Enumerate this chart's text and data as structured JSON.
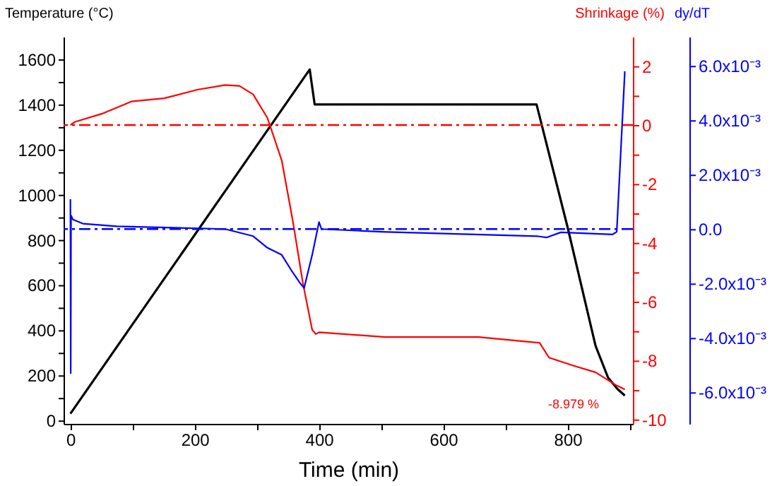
{
  "chart_data": {
    "type": "line",
    "xlabel": "Time (min)",
    "ylabel": "Temperature (°C)",
    "y2label": "Shrinkage (%)",
    "y3label": "dy/dT",
    "xlim": [
      -11,
      905
    ],
    "xticks": [
      0,
      {
        "value": 100,
        "label": null
      },
      200,
      {
        "value": 300,
        "label": null
      },
      400,
      {
        "value": 500,
        "label": null
      },
      600,
      {
        "value": 700,
        "label": null
      },
      800,
      {
        "value": 900,
        "label": null
      }
    ],
    "ylim": [
      -15,
      1700
    ],
    "yticks": [
      0,
      {
        "value": 100,
        "label": null
      },
      200,
      {
        "value": 300,
        "label": null
      },
      400,
      {
        "value": 500,
        "label": null
      },
      600,
      {
        "value": 700,
        "label": null
      },
      800,
      {
        "value": 900,
        "label": null
      },
      1000,
      {
        "value": 1100,
        "label": null
      },
      1200,
      {
        "value": 1300,
        "label": null
      },
      1400,
      {
        "value": 1500,
        "label": null
      },
      1600
    ],
    "y2lim": [
      -10.15,
      3
    ],
    "y2ticks": [
      -10,
      {
        "value": -9,
        "label": null
      },
      -8,
      {
        "value": -7,
        "label": null
      },
      -6,
      {
        "value": -5,
        "label": null
      },
      -4,
      {
        "value": -3,
        "label": null
      },
      -2,
      {
        "value": -1,
        "label": null
      },
      0,
      {
        "value": 1,
        "label": null
      },
      2
    ],
    "y3lim": [
      -0.00716,
      0.00707
    ],
    "y3ticks": [
      {
        "value": -0.006,
        "label": "-6.0x10⁻³"
      },
      {
        "value": -0.004,
        "label": "-4.0x10⁻³"
      },
      {
        "value": -0.002,
        "label": "-2.0x10⁻³"
      },
      {
        "value": 0,
        "label": "0.0"
      },
      {
        "value": 0.002,
        "label": "2.0x10⁻³"
      },
      {
        "value": 0.004,
        "label": "4.0x10⁻³"
      },
      {
        "value": 0.006,
        "label": "6.0x10⁻³"
      }
    ],
    "grid": false,
    "series": [
      {
        "color": "#000000",
        "x": [
          0,
          385,
          393,
          750,
          800,
          845,
          865,
          880,
          892
        ],
        "values": [
          30,
          1555,
          1400,
          1400,
          855,
          330,
          190,
          140,
          110
        ]
      },
      {
        "color": "#ff0000",
        "axis": "y2",
        "x": [
          0,
          7.5,
          53,
          98,
          151,
          204,
          249,
          272,
          294,
          317,
          340,
          358,
          374,
          389,
          395,
          400,
          506,
          657,
          755,
          770,
          807,
          845,
          879,
          892
        ],
        "values": [
          0,
          0.11,
          0.4,
          0.8,
          0.91,
          1.2,
          1.36,
          1.33,
          1.04,
          0.24,
          -1.2,
          -3.28,
          -5.36,
          -6.96,
          -7.1,
          -7.04,
          -7.2,
          -7.2,
          -7.4,
          -7.9,
          -8.16,
          -8.4,
          -8.85,
          -8.98
        ]
      },
      {
        "color": "#0000ff",
        "axis": "y3",
        "x": [
          0,
          0.5,
          1,
          4,
          20,
          75,
          249,
          294,
          317,
          340,
          355,
          370,
          376,
          389,
          400,
          404,
          500,
          751,
          766,
          789,
          872,
          879,
          892
        ],
        "values": [
          0.0011,
          -0.0053,
          0.0005,
          0.00035,
          0.0002,
          0.0001,
          0,
          -0.00026,
          -0.00069,
          -0.00095,
          -0.0015,
          -0.002,
          -0.00217,
          -0.00095,
          0.00026,
          0,
          -0.0001,
          -0.00026,
          -0.00031,
          -0.00012,
          -0.0002,
          -0.0001,
          0.0058
        ]
      }
    ],
    "ref_lines": [
      {
        "axis": "y2",
        "value": 0,
        "color": "#ff0000",
        "line_style": "dashed"
      },
      {
        "axis": "y3",
        "value": 0,
        "color": "#0000ff",
        "line_style": "dashed"
      }
    ],
    "annotations": [
      "-8.979 %"
    ]
  }
}
